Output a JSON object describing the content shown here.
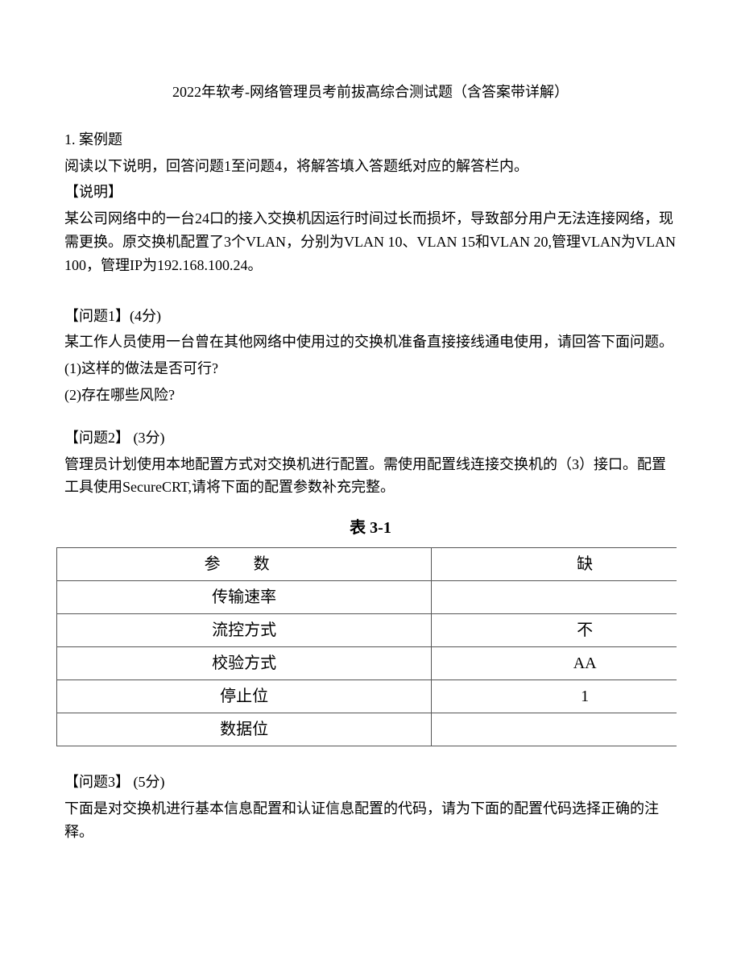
{
  "title": "2022年软考-网络管理员考前拔高综合测试题（含答案带详解）",
  "q1": {
    "num": "1. 案例题",
    "intro": "阅读以下说明，回答问题1至问题4，将解答填入答题纸对应的解答栏内。",
    "desc_label": "【说明】",
    "desc_p1": "某公司网络中的一台24口的接入交换机因运行时间过长而损坏，导致部分用户无法连接网络，现需更换。原交换机配置了3个VLAN，分别为VLAN 10、VLAN 15和VLAN 20,管理VLAN为VLAN 100，管理IP为192.168.100.24。"
  },
  "p1": {
    "heading": "【问题1】(4分)",
    "line1": "某工作人员使用一台曾在其他网络中使用过的交换机准备直接接线通电使用，请回答下面问题。",
    "line2": "(1)这样的做法是否可行?",
    "line3": "(2)存在哪些风险?"
  },
  "p2": {
    "heading": "【问题2】 (3分)",
    "line1": "管理员计划使用本地配置方式对交换机进行配置。需使用配置线连接交换机的（3）接口。配置工具使用SecureCRT,请将下面的配置参数补充完整。"
  },
  "table": {
    "caption": "表 3-1",
    "header_param": "参 数",
    "header_value": "缺",
    "rows": [
      {
        "param": "传输速率",
        "value": ""
      },
      {
        "param": "流控方式",
        "value": "不"
      },
      {
        "param": "校验方式",
        "value": "AA"
      },
      {
        "param": "停止位",
        "value": "1"
      },
      {
        "param": "数据位",
        "value": ""
      }
    ],
    "colors": {
      "border": "#555555",
      "text": "#000000"
    }
  },
  "p3": {
    "heading": "【问题3】 (5分)",
    "line1": "下面是对交换机进行基本信息配置和认证信息配置的代码，请为下面的配置代码选择正确的注释。"
  }
}
